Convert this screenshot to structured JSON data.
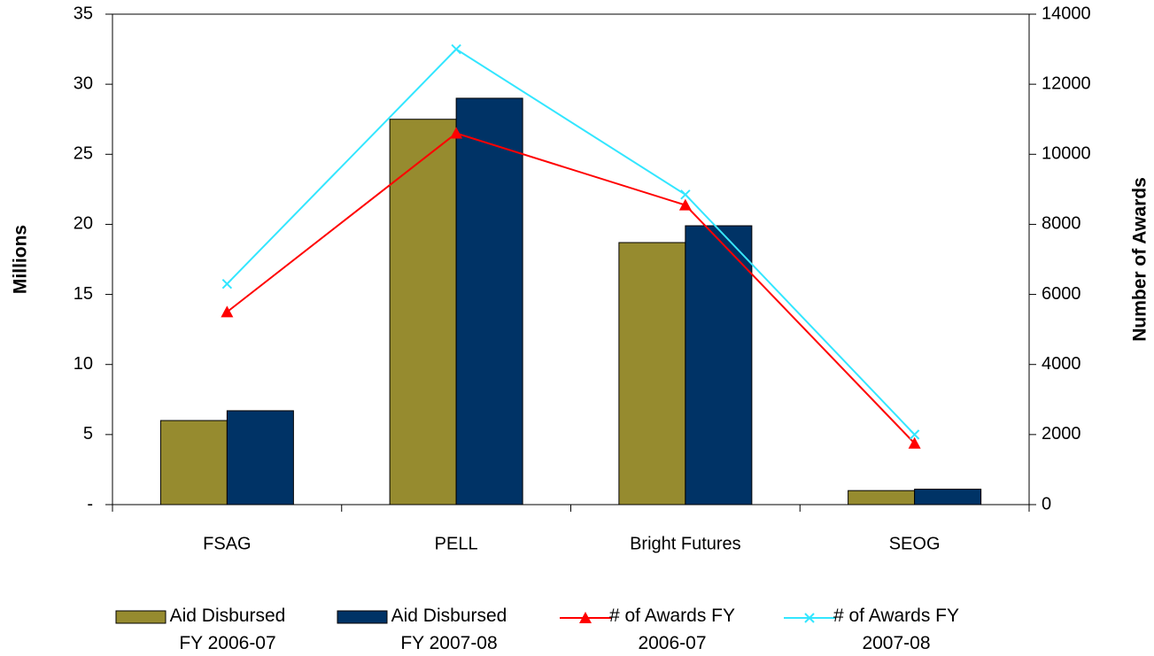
{
  "chart_data": {
    "type": "bar",
    "categories": [
      "FSAG",
      "PELL",
      "Bright Futures",
      "SEOG"
    ],
    "ylabel": "Millions",
    "y2label": "Number of Awards",
    "ylim": [
      0,
      35
    ],
    "yticks": [
      {
        "value": 0,
        "label": "-"
      },
      5,
      10,
      15,
      20,
      25,
      30,
      35
    ],
    "y2lim": [
      0,
      14000
    ],
    "y2ticks": [
      0,
      2000,
      4000,
      6000,
      8000,
      10000,
      12000,
      14000
    ],
    "series": [
      {
        "name": "Aid Disbursed FY 2006-07",
        "type": "bar",
        "color": "#968b2f",
        "values": [
          6.0,
          27.5,
          18.7,
          1.0
        ]
      },
      {
        "name": "Aid Disbursed FY 2007-08",
        "type": "bar",
        "color": "#003366",
        "values": [
          6.7,
          29.0,
          19.9,
          1.1
        ]
      },
      {
        "name": "# of Awards FY 2006-07",
        "type": "line",
        "axis": "y2",
        "marker": "triangle",
        "color": "#ff0000",
        "values": [
          5500,
          10600,
          8550,
          1750
        ]
      },
      {
        "name": "# of Awards FY 2007-08",
        "type": "line",
        "axis": "y2",
        "marker": "x",
        "color": "#33e6ff",
        "values": [
          6300,
          13000,
          8850,
          2000
        ]
      }
    ]
  }
}
